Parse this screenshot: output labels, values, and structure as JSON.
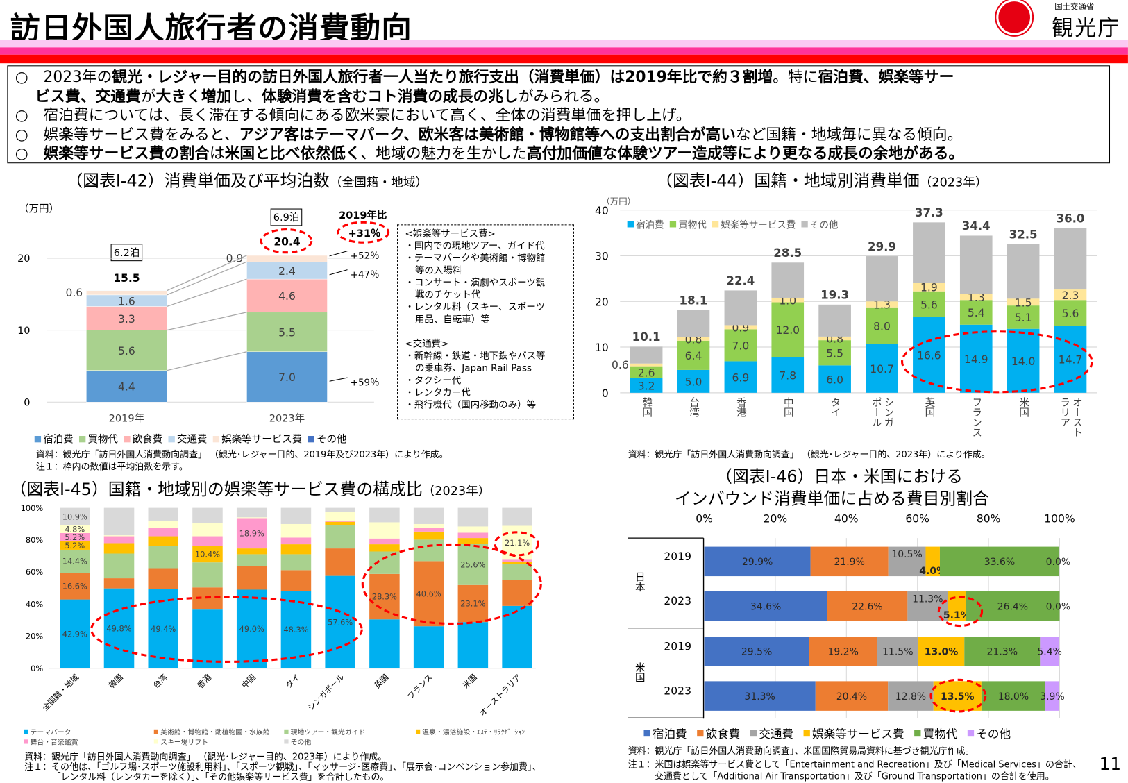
{
  "header": {
    "title": "訪日外国人旅行者の消費動向",
    "logo_ministry": "国土交通省",
    "logo_agency": "観光庁",
    "stripe_colors": [
      "#fbc8f3",
      "#ff3399",
      "#ff0000"
    ]
  },
  "summary": [
    [
      {
        "t": "○　2023年の",
        "b": false
      },
      {
        "t": "観光・レジャー目的の訪日外国人旅行者一人当たり旅行支出（消費単価）は2019年比で約３割増",
        "b": true
      },
      {
        "t": "。特に",
        "b": false
      },
      {
        "t": "宿泊費、娯楽等サー",
        "b": true
      }
    ],
    [
      {
        "t": "　 ",
        "b": false
      },
      {
        "t": "ビス費、交通費",
        "b": true
      },
      {
        "t": "が",
        "b": false
      },
      {
        "t": "大きく増加",
        "b": true
      },
      {
        "t": "し、",
        "b": false
      },
      {
        "t": "体験消費を含むコト消費の成長の兆し",
        "b": true
      },
      {
        "t": "がみられる。",
        "b": false
      }
    ],
    [
      {
        "t": "○　宿泊費については、長く滞在する傾向にある欧米豪において高く、全体の消費単価を押し上げ。",
        "b": false
      }
    ],
    [
      {
        "t": "○　娯楽等サービス費をみると、",
        "b": false
      },
      {
        "t": "アジア客はテーマパーク、欧米客は美術館・博物館等への支出割合が高い",
        "b": true
      },
      {
        "t": "など国籍・地域毎に異なる傾向。",
        "b": false
      }
    ],
    [
      {
        "t": "○　",
        "b": false
      },
      {
        "t": "娯楽等サービス費の割合",
        "b": true
      },
      {
        "t": "は",
        "b": false
      },
      {
        "t": "米国と比べ依然低く",
        "b": true
      },
      {
        "t": "、地域の魅力を生かした",
        "b": false
      },
      {
        "t": "高付加価値な体験ツアー造成等により更なる成長の余地がある。",
        "b": true
      }
    ]
  ],
  "fig42": {
    "title": "（図表Ⅰ-42）消費単価及び平均泊数",
    "title_sub": "（全国籍・地域）",
    "unit": "（万円）",
    "nights": [
      "6.2泊",
      "6.9泊"
    ],
    "vs2019_label": "2019年比",
    "vs2019_value": "+31％",
    "growth_labels": [
      "+52％",
      "+47％",
      "+59％"
    ],
    "dashbox": [
      "<娯楽等サービス費>",
      "・国内での現地ツアー、ガイド代",
      "・テーマパークや美術館・博物館",
      "等の入場料",
      "・コンサート・演劇やスポーツ観",
      "戦のチケット代",
      "・レンタル料（スキー、スポーツ",
      "用品、自転車）等",
      "",
      "<交通費>",
      "・新幹線・鉄道・地下鉄やバス等",
      "の乗車券、Japan Rail Pass",
      "・タクシー代",
      "・レンタカー代",
      "・飛行機代（国内移動のみ）等"
    ],
    "source": "資料：観光庁「訪日外国人消費動向調査」 （観光･レジャー目的、2019年及び2023年）により作成。",
    "note": "注１：枠内の数値は平均泊数を示す。"
  },
  "fig44": {
    "title": "（図表Ⅰ-44）国籍・地域別消費単価",
    "title_sub": "（2023年）",
    "unit": "（万円）",
    "source": "資料：観光庁「訪日外国人消費動向調査」 （観光･レジャー目的、2023年）により作成。"
  },
  "fig45": {
    "title": "（図表Ⅰ-45）国籍・地域別の娯楽等サービス費の構成比",
    "title_sub": "（2023年）",
    "source": "資料：観光庁「訪日外国人消費動向調査」 （観光･レジャー目的、2023年）により作成。",
    "note1": "注１：その他は、「ゴルフ場･スポーツ施設利用料」、「スポーツ観戦」、「マッサージ･医療費」、「展示会･コンベンション参加費」、",
    "note2": "「レンタル料（レンタカーを除く）」、「その他娯楽等サービス費」を合計したもの。"
  },
  "fig46": {
    "title1": "（図表Ⅰ-46）日本・米国における",
    "title2": "インバウンド消費単価に占める費目別割合",
    "groups": [
      "日本",
      "米国"
    ],
    "source": "資料：観光庁「訪日外国人消費動向調査」、米国国際貿易局資料に基づき観光庁作成。",
    "note1": "注１：米国は娯楽等サービス費として「Entertainment and Recreation」及び「Medical Services」の合計、",
    "note2": "交通費として「Additional Air Transportation」及び「Ground Transportation」の合計を使用。"
  },
  "page_number": "11",
  "chart_data": [
    {
      "type": "bar",
      "stacked": true,
      "categories": [
        "2019年",
        "2023年"
      ],
      "ylabel": "（万円）",
      "ylim": [
        0,
        20
      ],
      "yticks": [
        0,
        10,
        20
      ],
      "grid": true,
      "legend": "bottom",
      "totals": [
        15.5,
        20.4
      ],
      "series": [
        {
          "name": "宿泊費",
          "color": "#5b9bd5",
          "values": [
            4.4,
            7.0
          ]
        },
        {
          "name": "買物代",
          "color": "#a9d18e",
          "values": [
            5.6,
            5.5
          ]
        },
        {
          "name": "飲食費",
          "color": "#ffb3b3",
          "values": [
            3.3,
            4.6
          ]
        },
        {
          "name": "交通費",
          "color": "#bdd7ee",
          "values": [
            1.6,
            2.4
          ]
        },
        {
          "name": "娯楽等サービス費",
          "color": "#fbe5d6",
          "values": [
            0.6,
            0.9
          ]
        },
        {
          "name": "その他",
          "color": "#4472c4",
          "values": [
            0.05,
            0.05
          ]
        }
      ]
    },
    {
      "type": "bar",
      "stacked": true,
      "categories": [
        "韓国",
        "台湾",
        "香港",
        "中国",
        "タイ",
        "シンガポール",
        "英国",
        "フランス",
        "米国",
        "オーストラリア"
      ],
      "ylabel": "（万円）",
      "ylim": [
        0,
        40
      ],
      "yticks": [
        0,
        10,
        20,
        30,
        40
      ],
      "grid": true,
      "legend": "top-left",
      "totals": [
        10.1,
        18.1,
        22.4,
        28.5,
        19.3,
        29.9,
        37.3,
        34.4,
        32.5,
        36.0
      ],
      "series": [
        {
          "name": "宿泊費",
          "color": "#00b0f0",
          "values": [
            3.2,
            5.0,
            6.9,
            7.8,
            6.0,
            10.7,
            16.6,
            14.9,
            14.0,
            14.7
          ]
        },
        {
          "name": "買物代",
          "color": "#92d050",
          "values": [
            2.6,
            6.4,
            7.0,
            12.0,
            5.5,
            8.0,
            5.6,
            5.4,
            5.1,
            5.6
          ]
        },
        {
          "name": "娯楽等サービス費",
          "color": "#ffe699",
          "values": [
            0.6,
            0.8,
            0.9,
            1.0,
            0.8,
            1.3,
            1.9,
            1.3,
            1.5,
            2.3
          ]
        },
        {
          "name": "その他",
          "color": "#bfbfbf",
          "values": [
            3.7,
            5.9,
            7.6,
            7.7,
            7.0,
            9.9,
            13.2,
            12.8,
            11.9,
            13.4
          ]
        }
      ]
    },
    {
      "type": "bar",
      "stacked": true,
      "percent": true,
      "categories": [
        "全国籍・地域",
        "韓国",
        "台湾",
        "香港",
        "中国",
        "タイ",
        "シンガポール",
        "英国",
        "フランス",
        "米国",
        "オーストラリア"
      ],
      "ylim": [
        0,
        100
      ],
      "yticks": [
        "0%",
        "20%",
        "40%",
        "60%",
        "80%",
        "100%"
      ],
      "legend": "bottom",
      "series": [
        {
          "name": "テーマパーク",
          "color": "#00b0f0",
          "values": [
            42.9,
            49.8,
            49.4,
            36.6,
            49.0,
            48.3,
            57.6,
            30.5,
            26.2,
            28.8,
            38.9
          ],
          "labels": [
            "42.9%",
            "49.8%",
            "49.4%",
            null,
            "49.0%",
            "48.3%",
            "57.6%",
            null,
            null,
            null,
            null
          ]
        },
        {
          "name": "美術館・博物館・動植物園・水族館",
          "color": "#ed7d31",
          "values": [
            16.6,
            6.3,
            13.0,
            13.8,
            14.8,
            12.9,
            17.1,
            28.3,
            40.6,
            23.1,
            16.2
          ],
          "labels": [
            "16.6%",
            null,
            null,
            null,
            null,
            null,
            null,
            "28.3%",
            "40.6%",
            "23.1%",
            null
          ]
        },
        {
          "name": "現地ツアー・観光ガイド",
          "color": "#a9d18e",
          "values": [
            14.4,
            15.4,
            13.7,
            15.6,
            7.3,
            9.9,
            14.7,
            14.0,
            13.4,
            25.6,
            9.7
          ],
          "labels": [
            "14.4%",
            null,
            null,
            null,
            null,
            null,
            null,
            null,
            null,
            "25.6%",
            null
          ]
        },
        {
          "name": "温泉・湯浴施設・ｴｽﾃ・ﾘﾗｸｾﾞｰｼｮﾝ",
          "color": "#ffc000",
          "values": [
            5.2,
            6.5,
            6.2,
            10.4,
            3.6,
            6.2,
            1.9,
            4.5,
            5.0,
            3.7,
            1.6
          ],
          "labels": [
            "5.2%",
            null,
            null,
            "10.4%",
            null,
            null,
            null,
            null,
            null,
            null,
            null
          ]
        },
        {
          "name": "舞台・音楽鑑賞",
          "color": "#ff99cc",
          "values": [
            5.2,
            4.3,
            5.4,
            5.9,
            18.9,
            4.2,
            0.7,
            3.6,
            2.5,
            3.3,
            1.3
          ],
          "labels": [
            "5.2%",
            null,
            null,
            null,
            "18.9%",
            null,
            null,
            null,
            null,
            null,
            null
          ]
        },
        {
          "name": "スキー場リフト",
          "color": "#ffffcc",
          "values": [
            4.8,
            0.6,
            4.3,
            8.3,
            0.5,
            8.4,
            5.4,
            10.1,
            2.2,
            3.9,
            21.1
          ],
          "labels": [
            "4.8%",
            null,
            null,
            null,
            null,
            null,
            null,
            null,
            null,
            null,
            "21.1%"
          ]
        },
        {
          "name": "その他",
          "color": "#d9d9d9",
          "values": [
            10.9,
            17.1,
            8.0,
            9.4,
            5.9,
            10.1,
            2.6,
            9.0,
            10.1,
            11.6,
            11.2
          ],
          "labels": [
            "10.9%",
            null,
            null,
            null,
            null,
            null,
            null,
            null,
            null,
            null,
            null
          ]
        }
      ]
    },
    {
      "type": "bar",
      "orientation": "horizontal",
      "stacked": true,
      "percent": true,
      "categories": [
        "2019",
        "2023",
        "2019",
        "2023"
      ],
      "category_groups": [
        "日本",
        "日本",
        "米国",
        "米国"
      ],
      "xlim": [
        0,
        100
      ],
      "xticks": [
        "0%",
        "20%",
        "40%",
        "60%",
        "80%",
        "100%"
      ],
      "grid": true,
      "legend": "bottom",
      "series": [
        {
          "name": "宿泊費",
          "color": "#4472c4",
          "values": [
            29.9,
            34.6,
            29.5,
            31.3
          ]
        },
        {
          "name": "飲食費",
          "color": "#ed7d31",
          "values": [
            21.9,
            22.6,
            19.2,
            20.4
          ]
        },
        {
          "name": "交通費",
          "color": "#a5a5a5",
          "values": [
            10.5,
            11.3,
            11.5,
            12.8
          ]
        },
        {
          "name": "娯楽等サービス費",
          "color": "#ffc000",
          "values": [
            4.0,
            5.1,
            13.0,
            13.5
          ]
        },
        {
          "name": "買物代",
          "color": "#70ad47",
          "values": [
            33.6,
            26.4,
            21.3,
            18.0
          ]
        },
        {
          "name": "その他",
          "color": "#cc99ff",
          "values": [
            0.0,
            0.0,
            5.4,
            3.9
          ]
        }
      ]
    }
  ]
}
